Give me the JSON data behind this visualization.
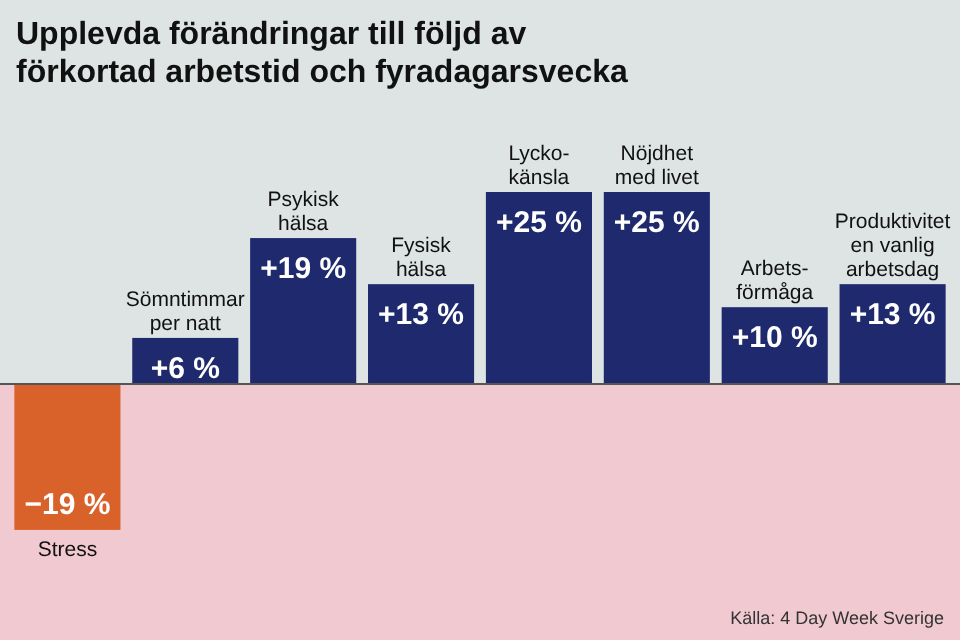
{
  "chart_data": {
    "type": "bar",
    "title": "Upplevda förändringar till följd av\nförkortad arbetstid och fyradagarsvecka",
    "categories": [
      "Stress",
      "Sömntimmar\nper natt",
      "Psykisk\nhälsa",
      "Fysisk\nhälsa",
      "Lycko-\nkänsla",
      "Nöjdhet\nmed livet",
      "Arbets-\nförmåga",
      "Produktivitet\nen vanlig\narbetsdag"
    ],
    "values": [
      -19,
      6,
      19,
      13,
      25,
      25,
      10,
      13
    ],
    "colors": [
      "#d9622b",
      "#1f2a6e",
      "#1f2a6e",
      "#1f2a6e",
      "#1f2a6e",
      "#1f2a6e",
      "#1f2a6e",
      "#1f2a6e"
    ],
    "value_labels": [
      "−19 %",
      "+6 %",
      "+19 %",
      "+13 %",
      "+25 %",
      "+25 %",
      "+10 %",
      "+13 %"
    ],
    "annotations": [
      "Källa: 4 Day Week Sverige"
    ]
  }
}
